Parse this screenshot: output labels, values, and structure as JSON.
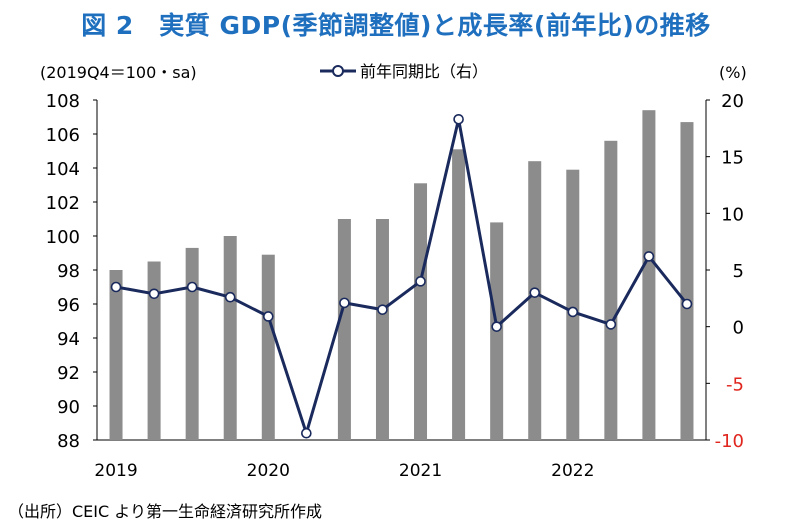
{
  "title": "図 2　実質 GDP(季節調整値)と成長率(前年比)の推移",
  "source_note": "（出所）CEIC より第一生命経済研究所作成",
  "colors": {
    "title": "#1f6fbf",
    "bars": "#8c8c8c",
    "line": "#1a2a5c",
    "negative_ticks": "#e0261f"
  },
  "chart_data": {
    "type": "bar",
    "left_axis_label": "(2019Q4＝100・sa)",
    "right_axis_label": "(%)",
    "legend": {
      "label": "前年同期比（右）",
      "position": "top"
    },
    "x_labels": [
      "2019",
      "2020",
      "2021",
      "2022"
    ],
    "quarters": [
      "2019Q1",
      "2019Q2",
      "2019Q3",
      "2019Q4",
      "2020Q1",
      "2020Q2",
      "2020Q3",
      "2020Q4",
      "2021Q1",
      "2021Q2",
      "2021Q3",
      "2021Q4",
      "2022Q1",
      "2022Q2",
      "2022Q3",
      "2022Q4"
    ],
    "bar_values": [
      98.0,
      98.5,
      99.3,
      100.0,
      98.9,
      88.0,
      101.0,
      101.0,
      103.1,
      105.1,
      100.8,
      104.4,
      103.9,
      105.6,
      107.4,
      106.7
    ],
    "line_values": [
      3.5,
      2.9,
      3.5,
      2.6,
      0.9,
      -9.4,
      2.1,
      1.5,
      4.0,
      18.3,
      0.0,
      3.0,
      1.3,
      0.2,
      6.2,
      2.0
    ],
    "y_left": {
      "min": 88,
      "max": 108,
      "ticks": [
        "108",
        "106",
        "104",
        "102",
        "100",
        "98",
        "96",
        "94",
        "92",
        "90",
        "88"
      ]
    },
    "y_right": {
      "min": -10,
      "max": 20,
      "ticks": [
        "20",
        "15",
        "10",
        "5",
        "0",
        "-5",
        "-10"
      ]
    },
    "grid": false
  }
}
